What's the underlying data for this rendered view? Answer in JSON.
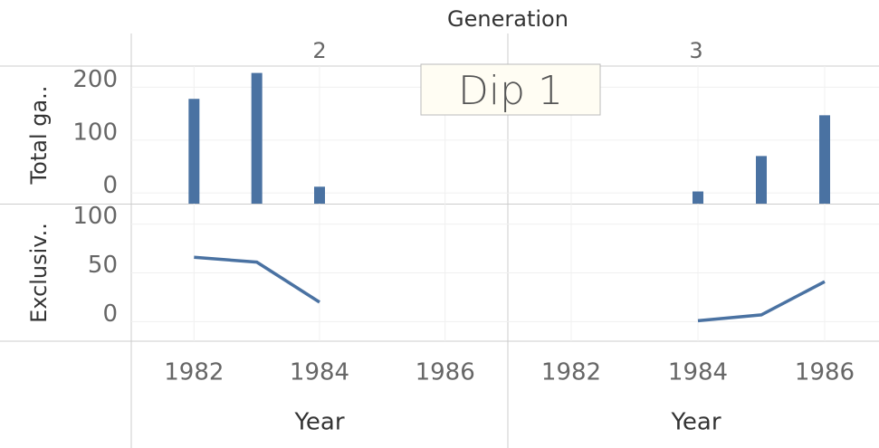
{
  "chart_data": {
    "column_header": "Generation",
    "x_label": "Year",
    "annotation": "Dip 1",
    "facets": [
      "2",
      "3"
    ],
    "xlim": [
      1981,
      1987
    ],
    "xticks": [
      1982,
      1984,
      1986
    ],
    "rows": [
      {
        "type": "bar",
        "y_label": "Total ga..",
        "ylim": [
          -20,
          240
        ],
        "yticks": [
          0,
          100,
          200
        ],
        "color": "#4a72a2",
        "grid": true,
        "series": [
          {
            "x": [
              1982,
              1983,
              1984
            ],
            "values": [
              178,
              227,
              12
            ]
          },
          {
            "x": [
              1984,
              1985,
              1986
            ],
            "values": [
              3,
              70,
              147
            ]
          }
        ]
      },
      {
        "type": "line",
        "y_label": "Exclusiv..",
        "ylim": [
          -20,
          120
        ],
        "yticks": [
          0,
          50,
          100
        ],
        "color": "#4a72a2",
        "grid": true,
        "series": [
          {
            "x": [
              1982,
              1983,
              1984
            ],
            "values": [
              66,
              61,
              20
            ]
          },
          {
            "x": [
              1984,
              1985,
              1986
            ],
            "values": [
              1,
              7,
              41
            ]
          }
        ]
      }
    ]
  }
}
